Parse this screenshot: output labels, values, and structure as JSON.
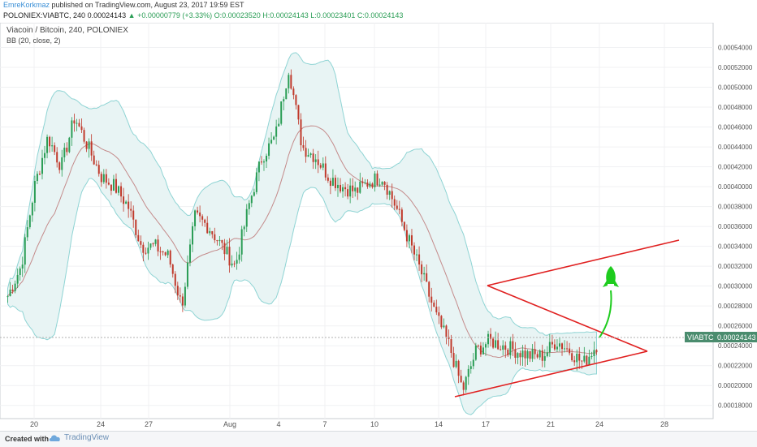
{
  "header": {
    "author": "EmreKorkmaz",
    "published": "published on TradingView.com, August 23, 2017 19:59 EST",
    "symbol": "POLONIEX:VIABTC, 240",
    "last": "0.00024143",
    "change": "+0.00000779 (+3.33%)",
    "ohlc": "O:0.00023520 H:0.00024143 L:0.00023401 C:0.00024143"
  },
  "chart_title": "Viacoin / Bitcoin, 240, POLONIEX",
  "indicator": "BB (20, close, 2)",
  "price_tag": {
    "symbol": "VIABTC",
    "value": "0.00024143"
  },
  "footer": {
    "created": "Created with",
    "brand": "TradingView"
  },
  "colors": {
    "up": "#2a9d55",
    "down": "#c0392b",
    "band_fill": "#e8f4f4",
    "band_line": "#8fd4d4",
    "basis": "#c48b8b",
    "pattern": "#e02020",
    "arrow": "#1ecc1e"
  },
  "chart_data": {
    "type": "candlestick",
    "ylim": [
      0.00017,
      0.00056
    ],
    "y_ticks": [
      "0.00018000",
      "0.00020000",
      "0.00022000",
      "0.00024000",
      "0.00026000",
      "0.00028000",
      "0.00030000",
      "0.00032000",
      "0.00034000",
      "0.00036000",
      "0.00038000",
      "0.00040000",
      "0.00042000",
      "0.00044000",
      "0.00046000",
      "0.00048000",
      "0.00050000",
      "0.00052000",
      "0.00054000"
    ],
    "x_ticks": [
      "20",
      "24",
      "27",
      "Aug",
      "4",
      "7",
      "10",
      "14",
      "17",
      "21",
      "24",
      "28"
    ],
    "price_path": [
      [
        0,
        0.00029
      ],
      [
        1,
        0.00032
      ],
      [
        2,
        0.0004
      ],
      [
        3,
        0.00045
      ],
      [
        4,
        0.00042
      ],
      [
        5,
        0.00047
      ],
      [
        6,
        0.00044
      ],
      [
        7,
        0.00041
      ],
      [
        8,
        0.0004
      ],
      [
        9,
        0.00038
      ],
      [
        10,
        0.00034
      ],
      [
        11,
        0.00034
      ],
      [
        12,
        0.00033
      ],
      [
        13,
        0.00028
      ],
      [
        14,
        0.00037
      ],
      [
        15,
        0.00036
      ],
      [
        16,
        0.00034
      ],
      [
        17,
        0.00032
      ],
      [
        18,
        0.00038
      ],
      [
        19,
        0.00043
      ],
      [
        20,
        0.00045
      ],
      [
        21,
        0.00052
      ],
      [
        22,
        0.00044
      ],
      [
        23,
        0.00043
      ],
      [
        24,
        0.00041
      ],
      [
        25,
        0.0004
      ],
      [
        26,
        0.000395
      ],
      [
        27,
        0.000405
      ],
      [
        28,
        0.00041
      ],
      [
        29,
        0.00038
      ],
      [
        30,
        0.000345
      ],
      [
        31,
        0.00031
      ],
      [
        32,
        0.00027
      ],
      [
        33,
        0.00024
      ],
      [
        34,
        0.000195
      ],
      [
        35,
        0.000235
      ],
      [
        36,
        0.000245
      ],
      [
        37,
        0.00024
      ],
      [
        38,
        0.000235
      ],
      [
        39,
        0.00023
      ],
      [
        40,
        0.00023
      ],
      [
        41,
        0.000245
      ],
      [
        42,
        0.000235
      ],
      [
        43,
        0.000222
      ],
      [
        44,
        0.000241
      ]
    ]
  }
}
